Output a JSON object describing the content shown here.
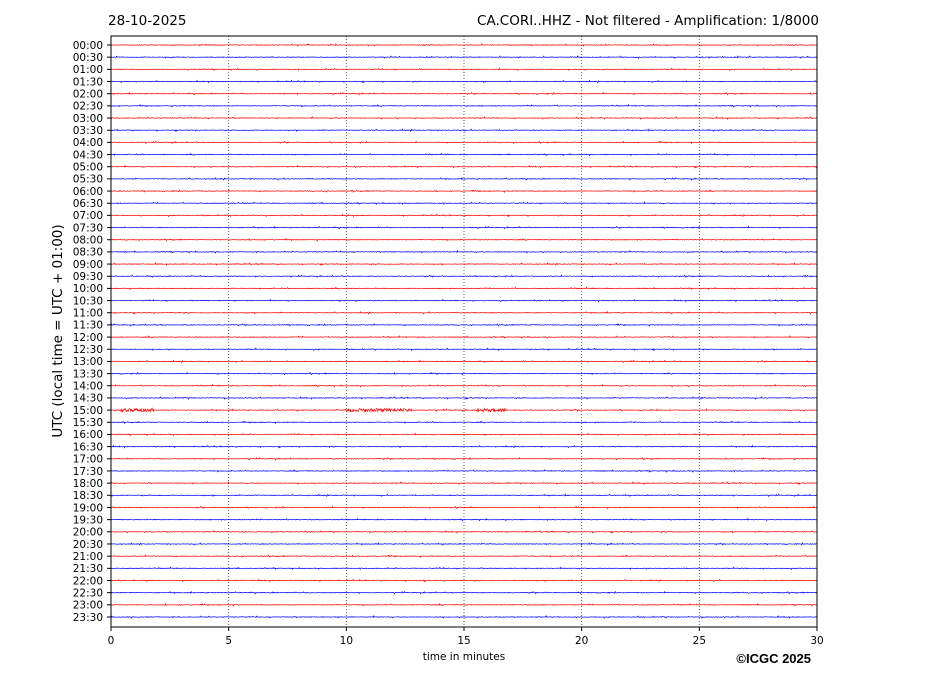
{
  "chart_data": {
    "type": "line",
    "title_left": "28-10-2025",
    "title_right": "CA.CORI..HHZ - Not filtered - Amplification: 1/8000",
    "xlabel": "time in minutes",
    "ylabel": "UTC (local time = UTC + 01:00)",
    "xlim": [
      0,
      30
    ],
    "x_ticks": [
      0,
      5,
      10,
      15,
      20,
      25,
      30
    ],
    "grid": "vertical dotted lines at 5-minute ticks",
    "row_labels": [
      "00:00",
      "00:30",
      "01:00",
      "01:30",
      "02:00",
      "02:30",
      "03:00",
      "03:30",
      "04:00",
      "04:30",
      "05:00",
      "05:30",
      "06:00",
      "06:30",
      "07:00",
      "07:30",
      "08:00",
      "08:30",
      "09:00",
      "09:30",
      "10:00",
      "10:30",
      "11:00",
      "11:30",
      "12:00",
      "12:30",
      "13:00",
      "13:30",
      "14:00",
      "14:30",
      "15:00",
      "15:30",
      "16:00",
      "16:30",
      "17:00",
      "17:30",
      "18:00",
      "18:30",
      "19:00",
      "19:30",
      "20:00",
      "20:30",
      "21:00",
      "21:30",
      "22:00",
      "22:30",
      "23:00",
      "23:30"
    ],
    "trace_colors": [
      "#ff0000",
      "#0000ff"
    ],
    "events": [
      {
        "row": "15:00",
        "start_min": 0.4,
        "end_min": 1.8
      },
      {
        "row": "15:00",
        "start_min": 10.0,
        "end_min": 12.8
      },
      {
        "row": "15:00",
        "start_min": 15.5,
        "end_min": 16.8
      }
    ]
  },
  "footer": {
    "copyright": "©ICGC 2025"
  }
}
